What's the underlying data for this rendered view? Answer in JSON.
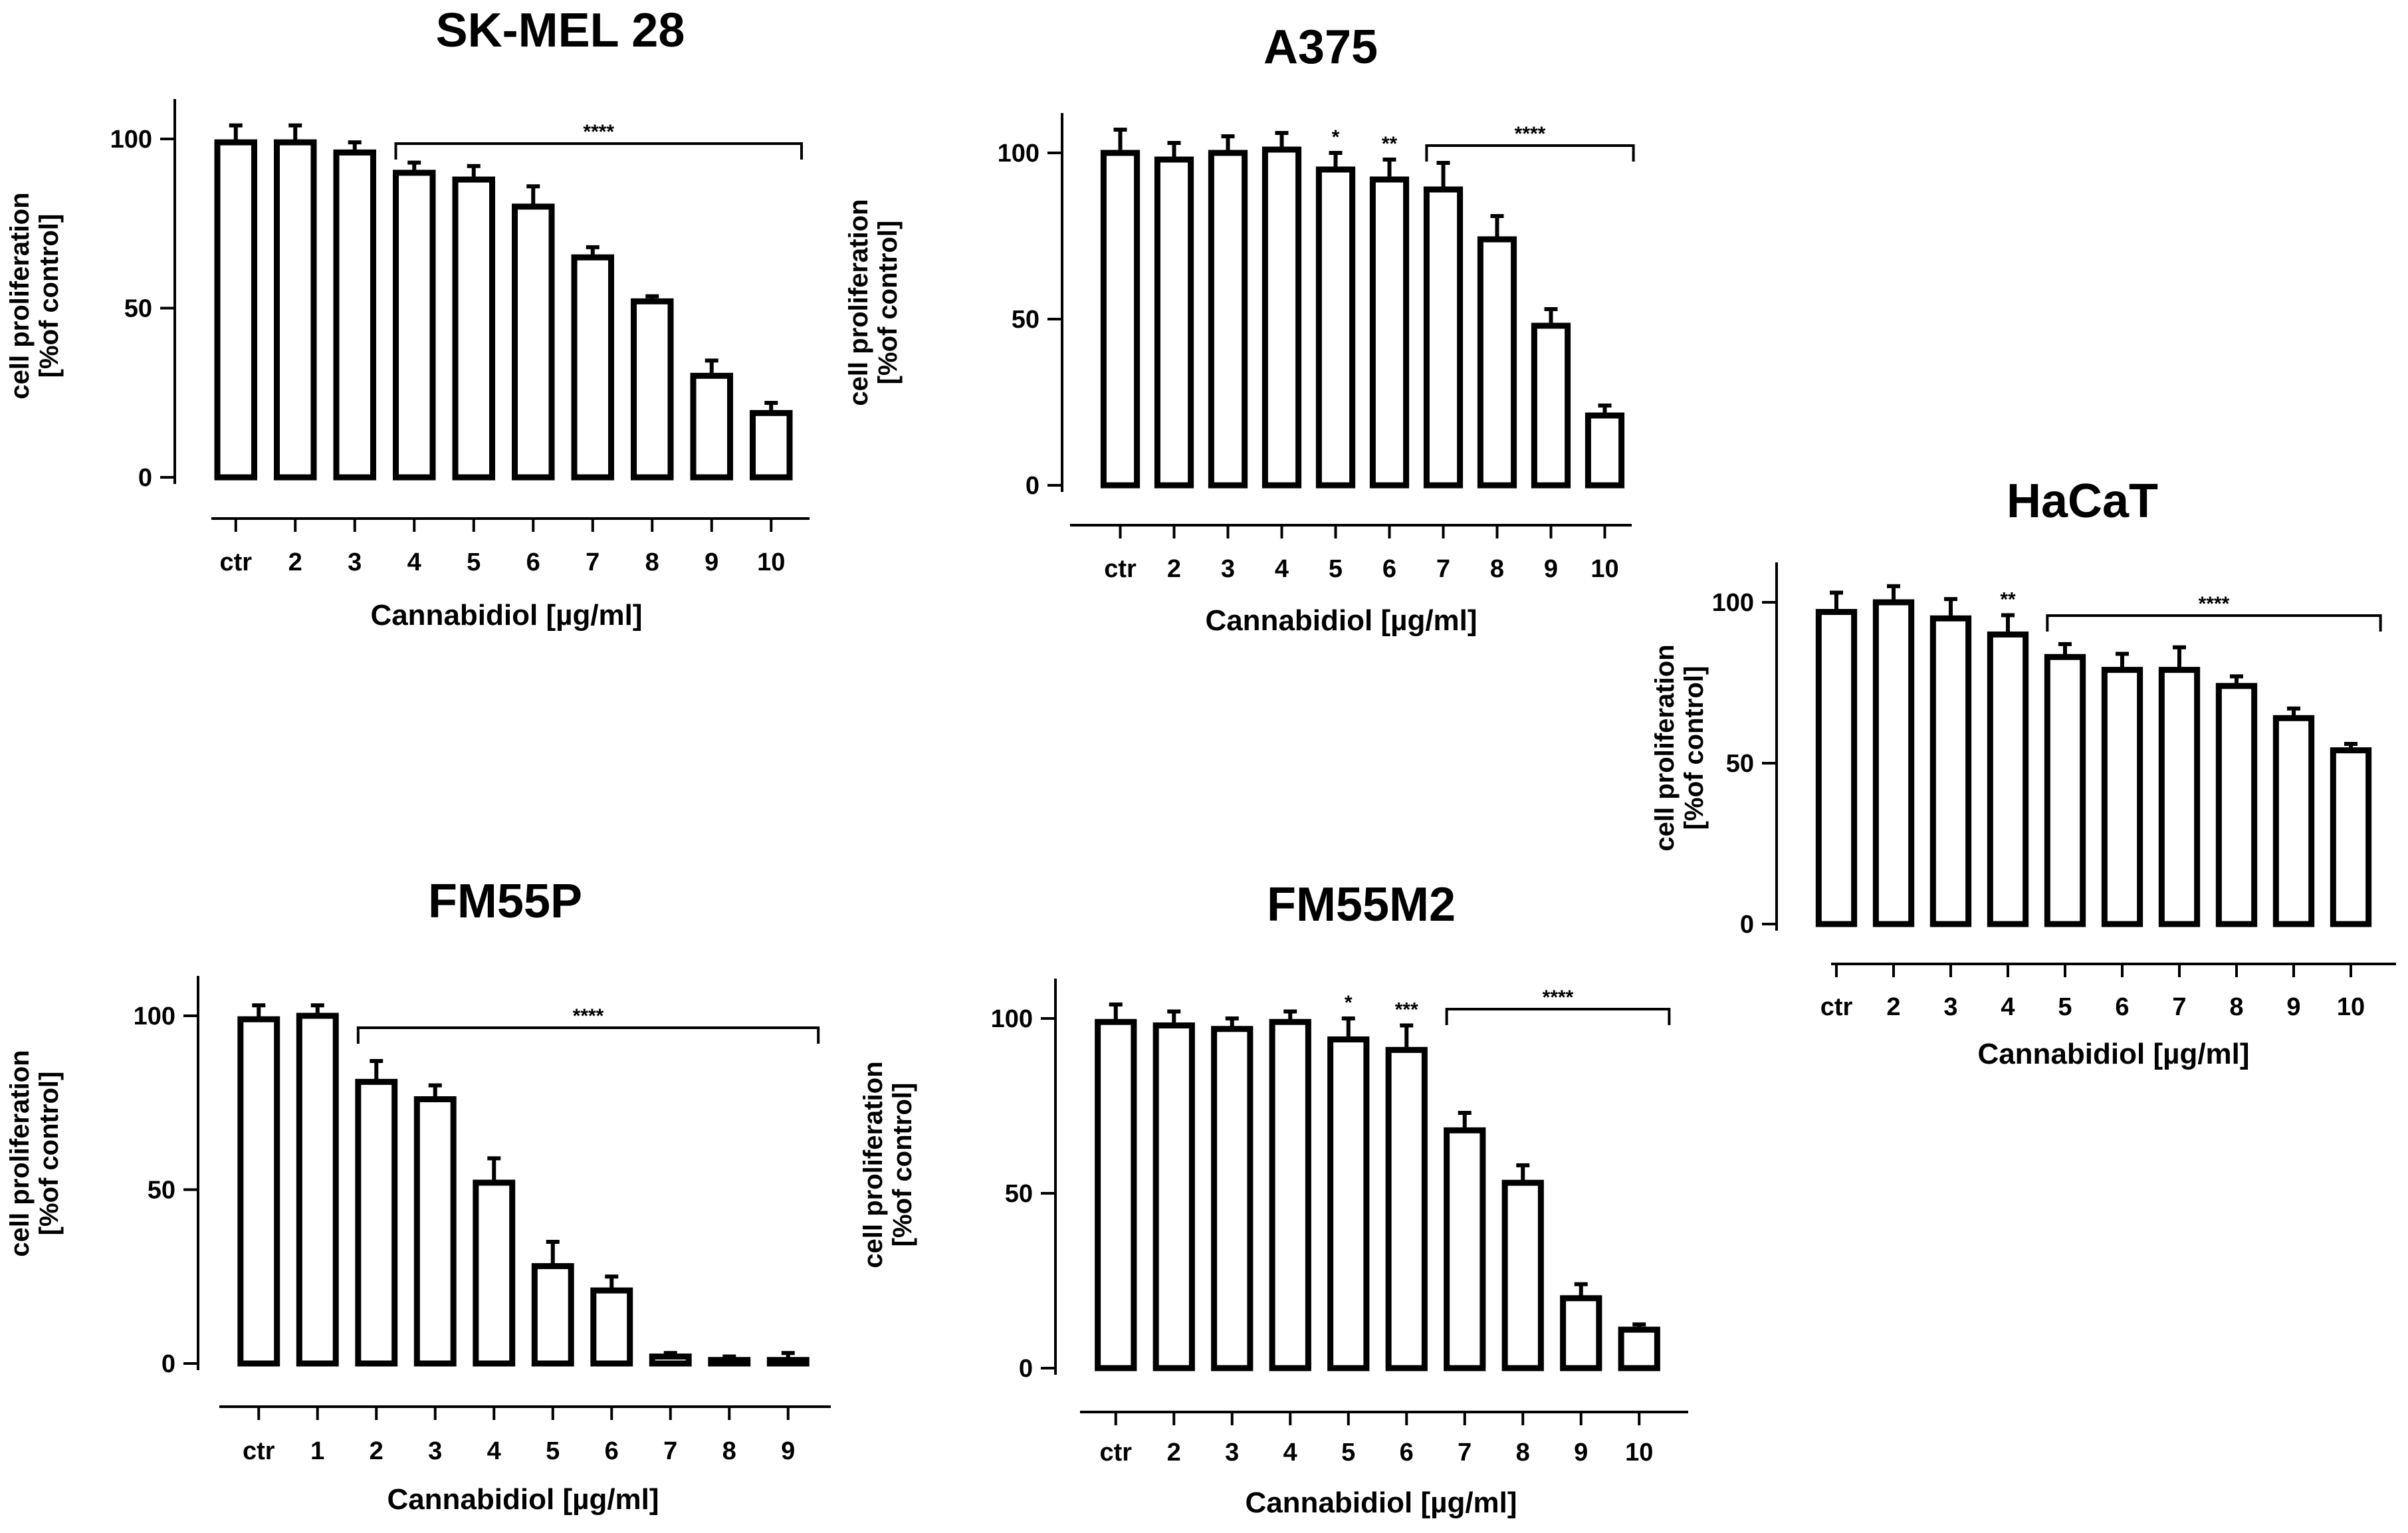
{
  "chart_data": [
    {
      "type": "bar",
      "title": "SK-MEL 28",
      "ylabel_line1": "cell proliferation",
      "ylabel_line2": "[%of control]",
      "xlabel": "Cannabidiol [µg/ml]",
      "ylim": [
        0,
        110
      ],
      "yticks": [
        0,
        50,
        100
      ],
      "categories": [
        "ctr",
        "2",
        "3",
        "4",
        "5",
        "6",
        "7",
        "8",
        "9",
        "10"
      ],
      "values": [
        99,
        99,
        96,
        90,
        88,
        80,
        65,
        52,
        30,
        19
      ],
      "errors": [
        5,
        5,
        3,
        3,
        4,
        6,
        3,
        1.5,
        4.5,
        3
      ],
      "significance": [
        {
          "label": "****",
          "from": "4",
          "to": "10",
          "bracket": true
        }
      ]
    },
    {
      "type": "bar",
      "title": "A375",
      "ylabel_line1": "cell proliferation",
      "ylabel_line2": "[%of control]",
      "xlabel": "Cannabidiol [µg/ml]",
      "ylim": [
        0,
        110
      ],
      "yticks": [
        0,
        50,
        100
      ],
      "categories": [
        "ctr",
        "2",
        "3",
        "4",
        "5",
        "6",
        "7",
        "8",
        "9",
        "10"
      ],
      "values": [
        100,
        98,
        100,
        101,
        95,
        92,
        89,
        74,
        48,
        21
      ],
      "errors": [
        7,
        5,
        5,
        5,
        5,
        6,
        8,
        7,
        5,
        3
      ],
      "significance": [
        {
          "label": "*",
          "from": "5",
          "to": "5",
          "bracket": false
        },
        {
          "label": "**",
          "from": "6",
          "to": "6",
          "bracket": false
        },
        {
          "label": "****",
          "from": "7",
          "to": "10",
          "bracket": true
        }
      ]
    },
    {
      "type": "bar",
      "title": "HaCaT",
      "ylabel_line1": "cell proliferation",
      "ylabel_line2": "[%of control]",
      "xlabel": "Cannabidiol [µg/ml]",
      "ylim": [
        0,
        110
      ],
      "yticks": [
        0,
        50,
        100
      ],
      "categories": [
        "ctr",
        "2",
        "3",
        "4",
        "5",
        "6",
        "7",
        "8",
        "9",
        "10"
      ],
      "values": [
        97,
        100,
        95,
        90,
        83,
        79,
        79,
        74,
        64,
        54
      ],
      "errors": [
        6,
        5,
        6,
        6,
        4,
        5,
        7,
        3,
        3,
        2
      ],
      "significance": [
        {
          "label": "**",
          "from": "4",
          "to": "4",
          "bracket": false
        },
        {
          "label": "****",
          "from": "5",
          "to": "10",
          "bracket": true
        }
      ]
    },
    {
      "type": "bar",
      "title": "FM55P",
      "ylabel_line1": "cell proliferation",
      "ylabel_line2": "[%of control]",
      "xlabel": "Cannabidiol [µg/ml]",
      "ylim": [
        0,
        110
      ],
      "yticks": [
        0,
        50,
        100
      ],
      "categories": [
        "ctr",
        "1",
        "2",
        "3",
        "4",
        "5",
        "6",
        "7",
        "8",
        "9"
      ],
      "values": [
        99,
        100,
        81,
        76,
        52,
        28,
        21,
        2,
        1,
        1
      ],
      "errors": [
        4,
        3,
        6,
        4,
        7,
        7,
        4,
        1,
        1,
        2
      ],
      "significance": [
        {
          "label": "****",
          "from": "2",
          "to": "9",
          "bracket": true
        }
      ]
    },
    {
      "type": "bar",
      "title": "FM55M2",
      "ylabel_line1": "cell proliferation",
      "ylabel_line2": "[%of control]",
      "xlabel": "Cannabidiol [µg/ml]",
      "ylim": [
        0,
        110
      ],
      "yticks": [
        0,
        50,
        100
      ],
      "categories": [
        "ctr",
        "2",
        "3",
        "4",
        "5",
        "6",
        "7",
        "8",
        "9",
        "10"
      ],
      "values": [
        99,
        98,
        97,
        99,
        94,
        91,
        68,
        53,
        20,
        11
      ],
      "errors": [
        5,
        4,
        3,
        3,
        6,
        7,
        5,
        5,
        4,
        1.5
      ],
      "significance": [
        {
          "label": "*",
          "from": "5",
          "to": "5",
          "bracket": false
        },
        {
          "label": "***",
          "from": "6",
          "to": "6",
          "bracket": false
        },
        {
          "label": "****",
          "from": "7",
          "to": "10",
          "bracket": true
        }
      ]
    }
  ]
}
